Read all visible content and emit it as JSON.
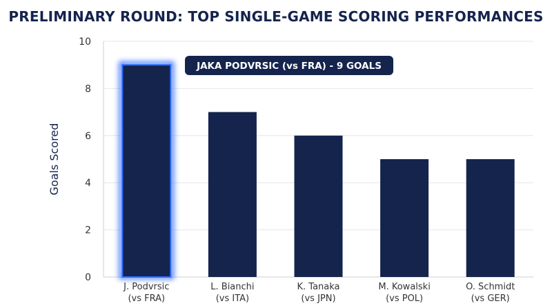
{
  "chart_data": {
    "type": "bar",
    "title": "PRELIMINARY ROUND: TOP SINGLE-GAME SCORING PERFORMANCES",
    "xlabel": "",
    "ylabel": "Goals Scored",
    "ylim": [
      0,
      10
    ],
    "yticks": [
      0,
      2,
      4,
      6,
      8,
      10
    ],
    "grid": true,
    "categories": [
      [
        "J. Podvrsic",
        "(vs FRA)"
      ],
      [
        "L. Bianchi",
        "(vs ITA)"
      ],
      [
        "K. Tanaka",
        "(vs JPN)"
      ],
      [
        "M. Kowalski",
        "(vs POL)"
      ],
      [
        "O. Schmidt",
        "(vs GER)"
      ]
    ],
    "values": [
      9,
      7,
      6,
      5,
      5
    ],
    "highlight_index": 0,
    "annotation": "JAKA PODVRSIC (vs FRA) - 9 GOALS",
    "colors": {
      "bar": "#14244d",
      "highlight_glow": "#2f6bff",
      "title": "#14244d",
      "grid": "#e6e6e6"
    }
  }
}
